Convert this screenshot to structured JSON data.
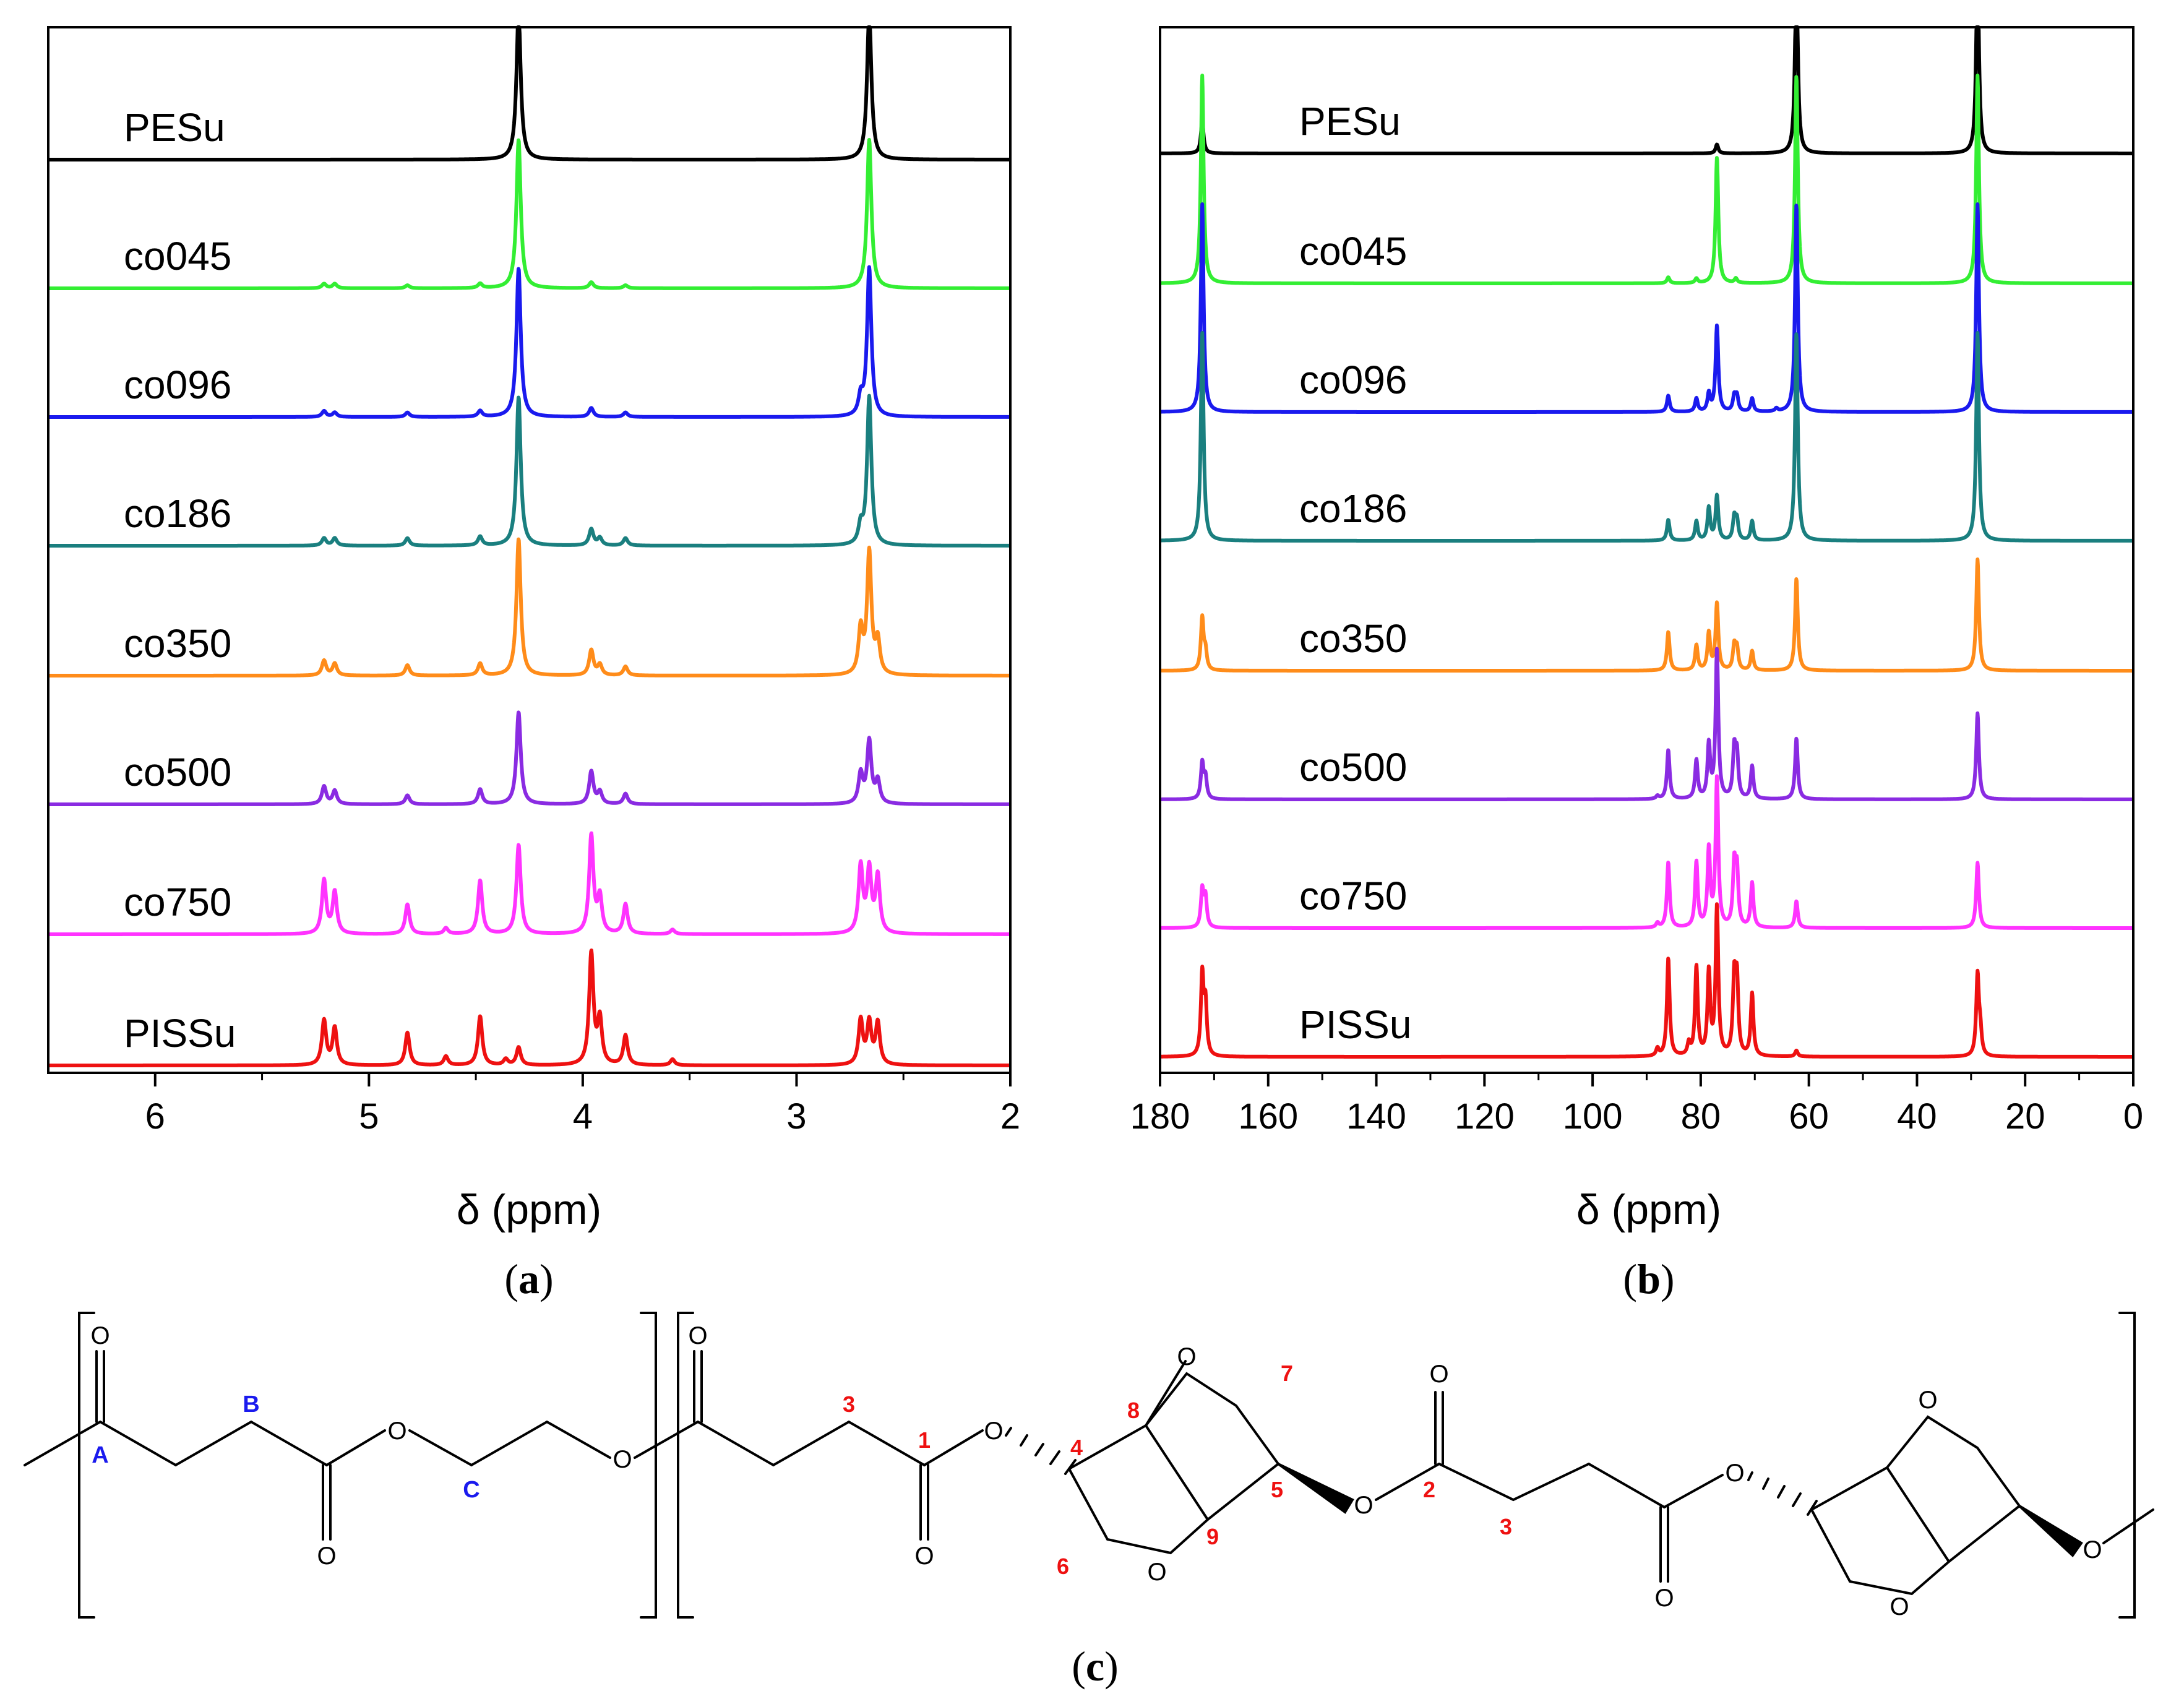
{
  "figure": {
    "panel_a_caption": "a",
    "panel_b_caption": "b",
    "panel_c_caption": "c"
  },
  "chart_data": [
    {
      "panel": "a",
      "type": "line",
      "title": "",
      "xlabel": "δ (ppm)",
      "ylabel": "",
      "xlim": [
        6.5,
        2.0
      ],
      "x_reversed": true,
      "x_ticks": [
        6,
        5,
        4,
        3,
        2
      ],
      "grid": false,
      "peak_width": 0.012,
      "series": [
        {
          "name": "PESu",
          "color": "#000000",
          "peaks": [
            [
              4.3,
              1.0
            ],
            [
              2.66,
              1.0
            ]
          ]
        },
        {
          "name": "co045",
          "color": "#33ee33",
          "peaks": [
            [
              4.3,
              1.0
            ],
            [
              2.66,
              1.0
            ],
            [
              5.21,
              0.03
            ],
            [
              5.16,
              0.03
            ],
            [
              4.82,
              0.02
            ],
            [
              4.48,
              0.03
            ],
            [
              3.96,
              0.04
            ],
            [
              3.8,
              0.02
            ]
          ]
        },
        {
          "name": "co096",
          "color": "#1a1aee",
          "peaks": [
            [
              4.3,
              1.0
            ],
            [
              2.66,
              1.0
            ],
            [
              2.7,
              0.12
            ],
            [
              5.21,
              0.04
            ],
            [
              5.16,
              0.03
            ],
            [
              4.82,
              0.03
            ],
            [
              4.48,
              0.04
            ],
            [
              3.96,
              0.06
            ],
            [
              3.8,
              0.03
            ]
          ]
        },
        {
          "name": "co186",
          "color": "#1a7f7f",
          "peaks": [
            [
              4.3,
              1.0
            ],
            [
              2.66,
              1.0
            ],
            [
              2.7,
              0.12
            ],
            [
              5.21,
              0.05
            ],
            [
              5.16,
              0.05
            ],
            [
              4.82,
              0.05
            ],
            [
              4.48,
              0.06
            ],
            [
              3.96,
              0.11
            ],
            [
              3.92,
              0.05
            ],
            [
              3.8,
              0.05
            ]
          ]
        },
        {
          "name": "co350",
          "color": "#ff8c1a",
          "peaks": [
            [
              4.3,
              0.92
            ],
            [
              2.66,
              0.82
            ],
            [
              2.7,
              0.3
            ],
            [
              2.62,
              0.22
            ],
            [
              5.21,
              0.1
            ],
            [
              5.16,
              0.08
            ],
            [
              4.82,
              0.07
            ],
            [
              4.48,
              0.08
            ],
            [
              3.96,
              0.17
            ],
            [
              3.92,
              0.07
            ],
            [
              3.8,
              0.06
            ]
          ]
        },
        {
          "name": "co500",
          "color": "#8a2be2",
          "peaks": [
            [
              4.3,
              0.62
            ],
            [
              2.66,
              0.42
            ],
            [
              2.7,
              0.2
            ],
            [
              2.62,
              0.15
            ],
            [
              5.21,
              0.12
            ],
            [
              5.16,
              0.09
            ],
            [
              4.82,
              0.06
            ],
            [
              4.48,
              0.1
            ],
            [
              3.96,
              0.22
            ],
            [
              3.92,
              0.08
            ],
            [
              3.8,
              0.07
            ]
          ]
        },
        {
          "name": "co750",
          "color": "#ff33ff",
          "peaks": [
            [
              4.3,
              0.6
            ],
            [
              2.66,
              0.42
            ],
            [
              2.7,
              0.45
            ],
            [
              2.62,
              0.38
            ],
            [
              5.21,
              0.36
            ],
            [
              5.16,
              0.28
            ],
            [
              4.82,
              0.2
            ],
            [
              4.48,
              0.36
            ],
            [
              3.96,
              0.66
            ],
            [
              3.92,
              0.24
            ],
            [
              3.8,
              0.2
            ],
            [
              4.64,
              0.04
            ],
            [
              3.58,
              0.03
            ]
          ]
        },
        {
          "name": "PISSu",
          "color": "#ee1111",
          "peaks": [
            [
              4.3,
              0.12
            ],
            [
              4.36,
              0.04
            ],
            [
              2.7,
              0.3
            ],
            [
              2.66,
              0.28
            ],
            [
              2.62,
              0.28
            ],
            [
              5.21,
              0.3
            ],
            [
              5.16,
              0.25
            ],
            [
              4.82,
              0.22
            ],
            [
              4.48,
              0.33
            ],
            [
              4.64,
              0.06
            ],
            [
              3.96,
              0.75
            ],
            [
              3.92,
              0.3
            ],
            [
              3.8,
              0.2
            ],
            [
              3.58,
              0.04
            ]
          ]
        }
      ]
    },
    {
      "panel": "b",
      "type": "line",
      "title": "",
      "xlabel": "δ (ppm)",
      "ylabel": "",
      "xlim": [
        180,
        0
      ],
      "x_reversed": true,
      "x_ticks": [
        180,
        160,
        140,
        120,
        100,
        80,
        60,
        40,
        20,
        0
      ],
      "grid": false,
      "peak_width": 0.3,
      "series": [
        {
          "name": "PESu",
          "color": "#000000",
          "peaks": [
            [
              172.2,
              0.22
            ],
            [
              62.3,
              1.3
            ],
            [
              28.8,
              1.3
            ],
            [
              77.0,
              0.06
            ]
          ]
        },
        {
          "name": "co045",
          "color": "#33ee33",
          "peaks": [
            [
              172.2,
              1.4
            ],
            [
              62.3,
              1.4
            ],
            [
              28.8,
              1.4
            ],
            [
              77.0,
              0.85
            ],
            [
              86.0,
              0.04
            ],
            [
              80.8,
              0.03
            ],
            [
              73.5,
              0.03
            ]
          ]
        },
        {
          "name": "co096",
          "color": "#1a1aee",
          "peaks": [
            [
              172.2,
              1.4
            ],
            [
              62.3,
              1.4
            ],
            [
              28.8,
              1.4
            ],
            [
              77.0,
              0.58
            ],
            [
              86.0,
              0.11
            ],
            [
              80.8,
              0.09
            ],
            [
              78.5,
              0.12
            ],
            [
              73.8,
              0.1
            ],
            [
              73.3,
              0.1
            ],
            [
              70.5,
              0.09
            ],
            [
              66.0,
              0.02
            ]
          ]
        },
        {
          "name": "co186",
          "color": "#1a7f7f",
          "peaks": [
            [
              172.2,
              1.4
            ],
            [
              62.3,
              1.4
            ],
            [
              28.8,
              1.4
            ],
            [
              77.0,
              0.3
            ],
            [
              86.0,
              0.14
            ],
            [
              80.8,
              0.13
            ],
            [
              78.5,
              0.22
            ],
            [
              73.8,
              0.15
            ],
            [
              73.3,
              0.13
            ],
            [
              70.5,
              0.13
            ]
          ]
        },
        {
          "name": "co350",
          "color": "#ff8c1a",
          "peaks": [
            [
              172.2,
              0.35
            ],
            [
              171.6,
              0.12
            ],
            [
              62.3,
              0.62
            ],
            [
              28.8,
              0.75
            ],
            [
              77.0,
              0.45
            ],
            [
              86.0,
              0.26
            ],
            [
              80.8,
              0.17
            ],
            [
              78.5,
              0.25
            ],
            [
              73.8,
              0.16
            ],
            [
              73.3,
              0.14
            ],
            [
              70.5,
              0.13
            ]
          ]
        },
        {
          "name": "co500",
          "color": "#8a2be2",
          "peaks": [
            [
              172.2,
              0.24
            ],
            [
              171.6,
              0.14
            ],
            [
              62.3,
              0.41
            ],
            [
              28.8,
              0.58
            ],
            [
              77.0,
              1.0
            ],
            [
              86.0,
              0.33
            ],
            [
              80.8,
              0.26
            ],
            [
              78.5,
              0.36
            ],
            [
              73.8,
              0.32
            ],
            [
              73.3,
              0.28
            ],
            [
              70.5,
              0.22
            ],
            [
              88.0,
              0.02
            ]
          ]
        },
        {
          "name": "co750",
          "color": "#ff33ff",
          "peaks": [
            [
              172.2,
              0.25
            ],
            [
              171.6,
              0.2
            ],
            [
              62.3,
              0.18
            ],
            [
              28.8,
              0.44
            ],
            [
              77.0,
              1.0
            ],
            [
              86.0,
              0.44
            ],
            [
              80.8,
              0.44
            ],
            [
              78.5,
              0.52
            ],
            [
              73.8,
              0.4
            ],
            [
              73.3,
              0.36
            ],
            [
              70.5,
              0.3
            ],
            [
              88.0,
              0.03
            ]
          ]
        },
        {
          "name": "PISSu",
          "color": "#ee1111",
          "peaks": [
            [
              172.2,
              0.54
            ],
            [
              171.6,
              0.34
            ],
            [
              62.3,
              0.04
            ],
            [
              28.8,
              0.54
            ],
            [
              28.3,
              0.15
            ],
            [
              77.0,
              1.0
            ],
            [
              86.0,
              0.66
            ],
            [
              80.8,
              0.6
            ],
            [
              78.5,
              0.56
            ],
            [
              73.8,
              0.5
            ],
            [
              73.3,
              0.48
            ],
            [
              70.5,
              0.42
            ],
            [
              88.0,
              0.05
            ],
            [
              82.2,
              0.08
            ]
          ]
        }
      ]
    }
  ],
  "structure": {
    "labels": {
      "O": "O",
      "A": "A",
      "B": "B",
      "C": "C",
      "c1": "1",
      "c2": "2",
      "c3": "3",
      "c4": "4",
      "c5": "5",
      "c6": "6",
      "c7": "7",
      "c8": "8",
      "c9": "9"
    },
    "label_colors": {
      "blue": "#1a1aee",
      "red": "#ee1111"
    }
  }
}
